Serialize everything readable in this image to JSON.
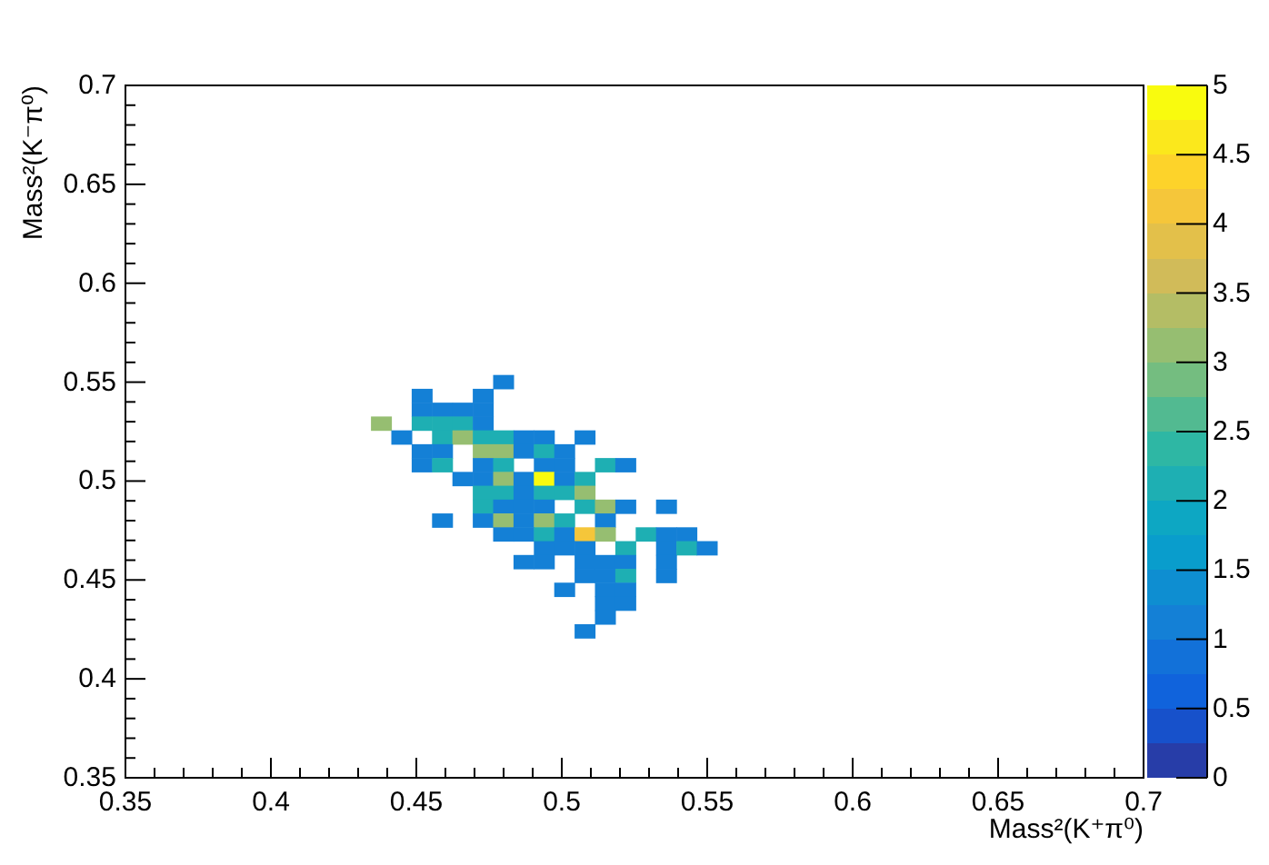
{
  "chart_data": {
    "type": "scatter",
    "xlabel": "Mass²(K⁺π⁰)",
    "ylabel": "Mass²(K⁻π⁰)",
    "marker": "square",
    "xlim": [
      0.35,
      0.7
    ],
    "xticks": [
      0.35,
      {
        "value": 0.36,
        "label": null
      },
      {
        "value": 0.37,
        "label": null
      },
      {
        "value": 0.38,
        "label": null
      },
      {
        "value": 0.39,
        "label": null
      },
      0.4,
      {
        "value": 0.41,
        "label": null
      },
      {
        "value": 0.42,
        "label": null
      },
      {
        "value": 0.43,
        "label": null
      },
      {
        "value": 0.44,
        "label": null
      },
      0.45,
      {
        "value": 0.46,
        "label": null
      },
      {
        "value": 0.47,
        "label": null
      },
      {
        "value": 0.48,
        "label": null
      },
      {
        "value": 0.49,
        "label": null
      },
      0.5,
      {
        "value": 0.51,
        "label": null
      },
      {
        "value": 0.52,
        "label": null
      },
      {
        "value": 0.53,
        "label": null
      },
      {
        "value": 0.54,
        "label": null
      },
      0.55,
      {
        "value": 0.56,
        "label": null
      },
      {
        "value": 0.57,
        "label": null
      },
      {
        "value": 0.58,
        "label": null
      },
      {
        "value": 0.59,
        "label": null
      },
      0.6,
      {
        "value": 0.61,
        "label": null
      },
      {
        "value": 0.62,
        "label": null
      },
      {
        "value": 0.63,
        "label": null
      },
      {
        "value": 0.64,
        "label": null
      },
      0.65,
      {
        "value": 0.66,
        "label": null
      },
      {
        "value": 0.67,
        "label": null
      },
      {
        "value": 0.68,
        "label": null
      },
      {
        "value": 0.69,
        "label": null
      },
      0.7
    ],
    "ylim": [
      0.35,
      0.7
    ],
    "yticks": [
      0.35,
      {
        "value": 0.36,
        "label": null
      },
      {
        "value": 0.37,
        "label": null
      },
      {
        "value": 0.38,
        "label": null
      },
      {
        "value": 0.39,
        "label": null
      },
      0.4,
      {
        "value": 0.41,
        "label": null
      },
      {
        "value": 0.42,
        "label": null
      },
      {
        "value": 0.43,
        "label": null
      },
      {
        "value": 0.44,
        "label": null
      },
      0.45,
      {
        "value": 0.46,
        "label": null
      },
      {
        "value": 0.47,
        "label": null
      },
      {
        "value": 0.48,
        "label": null
      },
      {
        "value": 0.49,
        "label": null
      },
      0.5,
      {
        "value": 0.51,
        "label": null
      },
      {
        "value": 0.52,
        "label": null
      },
      {
        "value": 0.53,
        "label": null
      },
      {
        "value": 0.54,
        "label": null
      },
      0.55,
      {
        "value": 0.56,
        "label": null
      },
      {
        "value": 0.57,
        "label": null
      },
      {
        "value": 0.58,
        "label": null
      },
      {
        "value": 0.59,
        "label": null
      },
      0.6,
      {
        "value": 0.61,
        "label": null
      },
      {
        "value": 0.62,
        "label": null
      },
      {
        "value": 0.63,
        "label": null
      },
      {
        "value": 0.64,
        "label": null
      },
      0.65,
      {
        "value": 0.66,
        "label": null
      },
      {
        "value": 0.67,
        "label": null
      },
      {
        "value": 0.68,
        "label": null
      },
      {
        "value": 0.69,
        "label": null
      },
      0.7
    ],
    "clim": [
      0,
      5
    ],
    "cticks": [
      0,
      0.5,
      1,
      1.5,
      2,
      2.5,
      3,
      3.5,
      4,
      4.5,
      5
    ],
    "x": [
      0.48,
      0.452,
      0.473,
      0.452,
      0.459,
      0.466,
      0.473,
      0.438,
      0.452,
      0.459,
      0.466,
      0.473,
      0.445,
      0.459,
      0.466,
      0.473,
      0.48,
      0.487,
      0.494,
      0.508,
      0.452,
      0.459,
      0.473,
      0.48,
      0.487,
      0.494,
      0.501,
      0.452,
      0.459,
      0.473,
      0.48,
      0.494,
      0.501,
      0.515,
      0.522,
      0.466,
      0.473,
      0.48,
      0.487,
      0.494,
      0.501,
      0.508,
      0.473,
      0.48,
      0.487,
      0.494,
      0.501,
      0.508,
      0.473,
      0.48,
      0.487,
      0.494,
      0.508,
      0.515,
      0.522,
      0.536,
      0.459,
      0.473,
      0.48,
      0.487,
      0.494,
      0.501,
      0.515,
      0.48,
      0.487,
      0.494,
      0.501,
      0.508,
      0.515,
      0.529,
      0.536,
      0.543,
      0.494,
      0.501,
      0.508,
      0.522,
      0.536,
      0.543,
      0.55,
      0.487,
      0.494,
      0.508,
      0.515,
      0.522,
      0.536,
      0.508,
      0.515,
      0.522,
      0.536,
      0.501,
      0.515,
      0.522,
      0.515,
      0.522,
      0.515,
      0.508
    ],
    "values": [
      0.55,
      0.543,
      0.543,
      0.536,
      0.536,
      0.536,
      0.536,
      0.529,
      0.529,
      0.529,
      0.529,
      0.529,
      0.522,
      0.522,
      0.522,
      0.522,
      0.522,
      0.522,
      0.522,
      0.522,
      0.515,
      0.515,
      0.515,
      0.515,
      0.515,
      0.515,
      0.515,
      0.508,
      0.508,
      0.508,
      0.508,
      0.508,
      0.508,
      0.508,
      0.508,
      0.501,
      0.501,
      0.501,
      0.501,
      0.501,
      0.501,
      0.501,
      0.494,
      0.494,
      0.494,
      0.494,
      0.494,
      0.494,
      0.487,
      0.487,
      0.487,
      0.487,
      0.487,
      0.487,
      0.487,
      0.487,
      0.48,
      0.48,
      0.48,
      0.48,
      0.48,
      0.48,
      0.48,
      0.473,
      0.473,
      0.473,
      0.473,
      0.473,
      0.473,
      0.473,
      0.473,
      0.473,
      0.466,
      0.466,
      0.466,
      0.466,
      0.466,
      0.466,
      0.466,
      0.459,
      0.459,
      0.459,
      0.459,
      0.459,
      0.459,
      0.452,
      0.452,
      0.452,
      0.452,
      0.445,
      0.445,
      0.445,
      0.438,
      0.438,
      0.431,
      0.424
    ],
    "cvalues": [
      1,
      1,
      1,
      1,
      1,
      1,
      1,
      3,
      2,
      2,
      2,
      1,
      1,
      2,
      3,
      2,
      2,
      1,
      1,
      1,
      1,
      1,
      3,
      3,
      1,
      2,
      1,
      1,
      2,
      1,
      2,
      1,
      1,
      2,
      1,
      1,
      1,
      3,
      1,
      5,
      1,
      2,
      2,
      2,
      1,
      2,
      2,
      3,
      2,
      1,
      1,
      1,
      2,
      3,
      1,
      1,
      1,
      1,
      3,
      1,
      3,
      2,
      1,
      1,
      1,
      2,
      1,
      4,
      3,
      2,
      1,
      1,
      1,
      1,
      1,
      2,
      1,
      2,
      1,
      1,
      1,
      1,
      1,
      1,
      1,
      1,
      1,
      2,
      1,
      1,
      1,
      1,
      1,
      1,
      1,
      1
    ]
  }
}
